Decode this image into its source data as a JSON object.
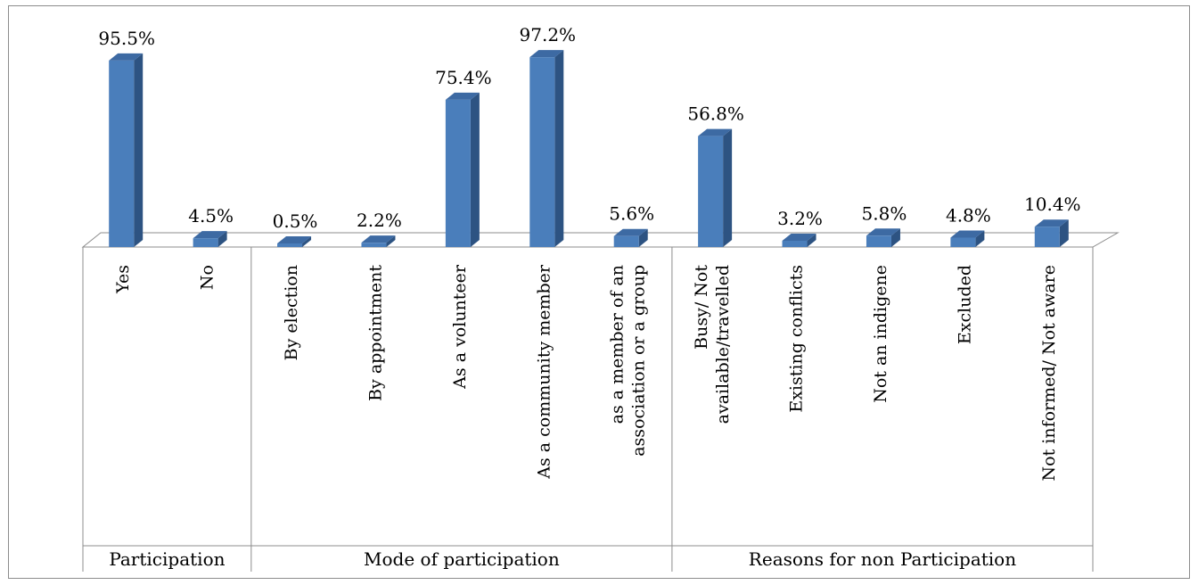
{
  "chart_data": {
    "type": "bar",
    "style": "3d-column",
    "bar_color": "#4a7ebb",
    "bar_side_color": "#2d5382",
    "bar_top_color": "#3d6aa3",
    "groups": [
      {
        "name": "Participation",
        "categories": [
          "Yes",
          "No"
        ]
      },
      {
        "name": "Mode of participation",
        "categories": [
          "By election",
          "By appointment",
          "As a volunteer",
          "As a community member",
          "as a member of an association or a group"
        ]
      },
      {
        "name": "Reasons for non Participation",
        "categories": [
          "Busy/ Not available/travelled",
          "Existing conflicts",
          "Not an indigene",
          "Excluded",
          "Not informed/ Not aware"
        ]
      }
    ],
    "categories": [
      "Yes",
      "No",
      "By election",
      "By appointment",
      "As a volunteer",
      "As a community member",
      "as a member of an association or a group",
      "Busy/ Not available/travelled",
      "Existing conflicts",
      "Not an indigene",
      "Excluded",
      "Not informed/ Not aware"
    ],
    "category_lines": [
      [
        "Yes"
      ],
      [
        "No"
      ],
      [
        "By election"
      ],
      [
        "By appointment"
      ],
      [
        "As a volunteer"
      ],
      [
        "As a community member"
      ],
      [
        "as a member of an",
        "association or a group"
      ],
      [
        "Busy/ Not",
        "available/travelled"
      ],
      [
        "Existing conflicts"
      ],
      [
        "Not an indigene"
      ],
      [
        "Excluded"
      ],
      [
        "Not informed/ Not aware"
      ]
    ],
    "values": [
      95.5,
      4.5,
      0.5,
      2.2,
      75.4,
      97.2,
      5.6,
      56.8,
      3.2,
      5.8,
      4.8,
      10.4
    ],
    "data_labels": [
      "95.5%",
      "4.5%",
      "0.5%",
      "2.2%",
      "75.4%",
      "97.2%",
      "5.6%",
      "56.8%",
      "3.2%",
      "5.8%",
      "4.8%",
      "10.4%"
    ],
    "ylim": [
      0,
      100
    ],
    "grid": false,
    "legend": "none"
  }
}
